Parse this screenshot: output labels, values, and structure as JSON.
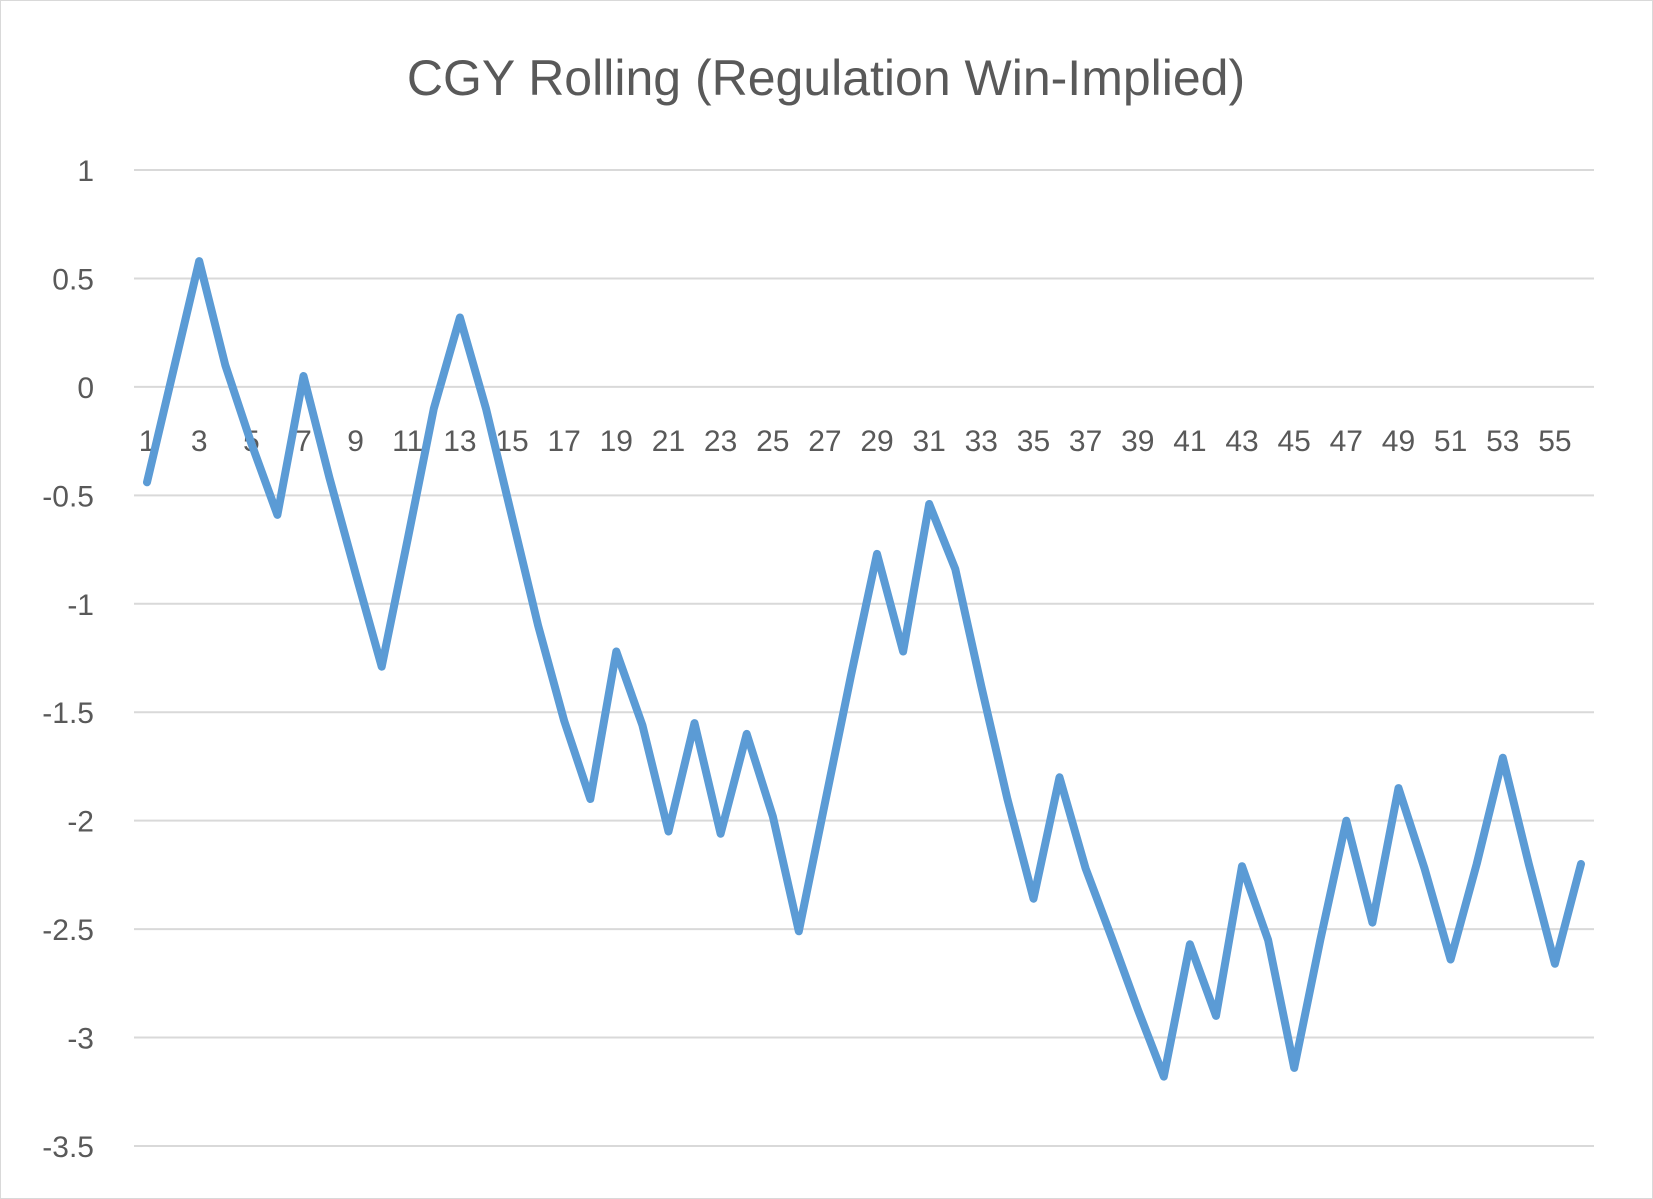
{
  "chart_data": {
    "type": "line",
    "title": "CGY Rolling (Regulation Win-Implied)",
    "xlabel": "",
    "ylabel": "",
    "ylim": [
      -3.5,
      1
    ],
    "yticks": [
      1,
      0.5,
      0,
      -0.5,
      -1,
      -1.5,
      -2,
      -2.5,
      -3,
      -3.5
    ],
    "ytick_labels": [
      "1",
      "0.5",
      "0",
      "-0.5",
      "-1",
      "-1.5",
      "-2",
      "-2.5",
      "-3",
      "-3.5"
    ],
    "xtick_labels": [
      "1",
      "3",
      "5",
      "7",
      "9",
      "11",
      "13",
      "15",
      "17",
      "19",
      "21",
      "23",
      "25",
      "27",
      "29",
      "31",
      "33",
      "35",
      "37",
      "39",
      "41",
      "43",
      "45",
      "47",
      "49",
      "51",
      "53",
      "55"
    ],
    "grid": true,
    "legend": "none",
    "x": [
      1,
      2,
      3,
      4,
      5,
      6,
      7,
      8,
      9,
      10,
      11,
      12,
      13,
      14,
      15,
      16,
      17,
      18,
      19,
      20,
      21,
      22,
      23,
      24,
      25,
      26,
      27,
      28,
      29,
      30,
      31,
      32,
      33,
      34,
      35,
      36,
      37,
      38,
      39,
      40,
      41,
      42,
      43,
      44,
      45,
      46,
      47,
      48,
      49,
      50,
      51,
      52,
      53,
      54,
      55,
      56
    ],
    "series": [
      {
        "color": "#5b9bd5",
        "values": [
          -0.44,
          0.07,
          0.58,
          0.1,
          -0.26,
          -0.59,
          0.05,
          -0.42,
          -0.86,
          -1.29,
          -0.7,
          -0.1,
          0.32,
          -0.1,
          -0.6,
          -1.1,
          -1.54,
          -1.9,
          -1.22,
          -1.56,
          -2.05,
          -1.55,
          -2.06,
          -1.6,
          -1.98,
          -2.51,
          -1.92,
          -1.33,
          -0.77,
          -1.22,
          -0.54,
          -0.84,
          -1.38,
          -1.9,
          -2.36,
          -1.8,
          -2.22,
          -2.54,
          -2.87,
          -3.18,
          -2.57,
          -2.9,
          -2.21,
          -2.55,
          -3.14,
          -2.55,
          -2.0,
          -2.47,
          -1.85,
          -2.22,
          -2.64,
          -2.2,
          -1.71,
          -2.2,
          -2.66,
          -2.2
        ]
      }
    ]
  }
}
